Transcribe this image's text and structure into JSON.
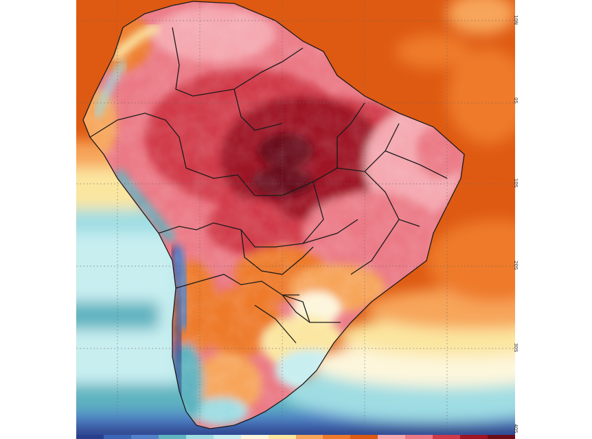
{
  "map": {
    "lat_labels": [
      "10N",
      "0S",
      "10S",
      "20S",
      "30S",
      "40S"
    ],
    "colors": {
      "ocean_base": "#de5a12",
      "deep_red": "#9e1525",
      "darkest": "#6b0e1a",
      "red": "#d13a48",
      "pink": "#eb7a86",
      "light_pink": "#f5a8b0",
      "orange": "#ee7a2c",
      "light_orange": "#f7a55a",
      "yellow": "#fbe6a0",
      "cream": "#fdf6dc",
      "light_cyan": "#c8eef0",
      "cyan": "#9fdde3",
      "teal": "#5fb4c0",
      "blue": "#5080c8",
      "dark_blue": "#2a3f8c",
      "border_line": "#1a1a1a",
      "grid_line": "#666666"
    },
    "colorbar": [
      "#2a3f8c",
      "#3a64b4",
      "#5080c8",
      "#5fb4c0",
      "#9fdde3",
      "#c8eef0",
      "#fdf6dc",
      "#fbe6a0",
      "#f7a55a",
      "#ee7a2c",
      "#de5a12",
      "#f5a8b0",
      "#eb7a86",
      "#d13a48",
      "#9e1525",
      "#6b0e1a"
    ]
  }
}
